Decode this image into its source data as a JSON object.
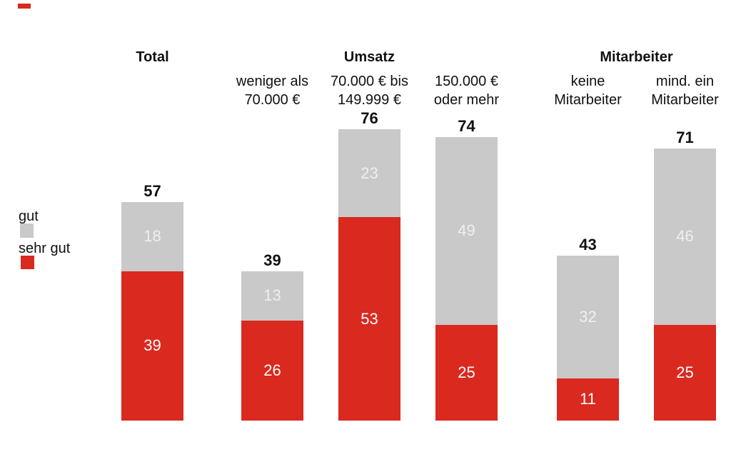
{
  "page": {
    "background": "#ffffff",
    "accent_red": "#da291f",
    "accent_gray": "#c9c9c9"
  },
  "legend": {
    "items": [
      {
        "label": "gut",
        "color": "#c9c9c9"
      },
      {
        "label": "sehr gut",
        "color": "#da291f"
      }
    ]
  },
  "chart_data": {
    "type": "bar",
    "stacked": true,
    "title": "",
    "group_headers": [
      "Total",
      "Umsatz",
      "Mitarbeiter"
    ],
    "groups": [
      {
        "label": "Total",
        "category_indexes": [
          0
        ]
      },
      {
        "label": "Umsatz",
        "category_indexes": [
          1,
          2,
          3
        ]
      },
      {
        "label": "Mitarbeiter",
        "category_indexes": [
          4,
          5
        ]
      }
    ],
    "categories": [
      "Total",
      "weniger als 70.000 €",
      "70.000 € bis 149.999 €",
      "150.000 € oder mehr",
      "keine Mitarbeiter",
      "mind. ein Mitarbeiter"
    ],
    "category_lines": [
      [],
      [
        "weniger als",
        "70.000 €"
      ],
      [
        "70.000 € bis",
        "149.999 €"
      ],
      [
        "150.000 €",
        "oder mehr"
      ],
      [
        "keine",
        "Mitarbeiter"
      ],
      [
        "mind. ein",
        "Mitarbeiter"
      ]
    ],
    "series": [
      {
        "name": "gut",
        "color": "#c9c9c9",
        "values": [
          18,
          13,
          23,
          49,
          32,
          46
        ]
      },
      {
        "name": "sehr gut",
        "color": "#da291f",
        "values": [
          39,
          26,
          53,
          25,
          11,
          25
        ]
      }
    ],
    "totals": [
      57,
      39,
      76,
      74,
      43,
      71
    ],
    "stack_order_bottom_to_top": [
      "sehr gut",
      "gut"
    ],
    "value_labels_inside": true,
    "total_labels_above": true,
    "legend_position": "left",
    "axes_visible": false,
    "grid": false,
    "ylim": [
      0,
      80
    ]
  }
}
